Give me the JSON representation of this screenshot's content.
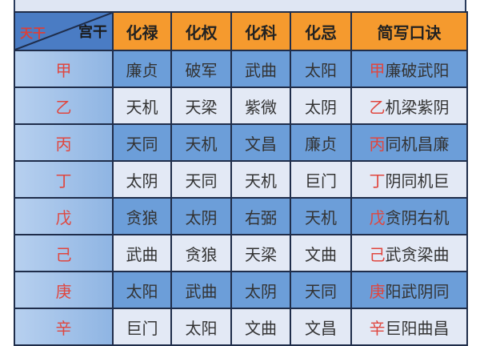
{
  "header": {
    "corner_stem": "天干",
    "corner_palace": "宫干",
    "columns": [
      "化禄",
      "化权",
      "化科",
      "化忌",
      "简写口诀"
    ]
  },
  "rows": [
    {
      "stem": "甲",
      "cells": [
        "廉贞",
        "破军",
        "武曲",
        "太阳"
      ],
      "mnemonic_rest": "廉破武阳"
    },
    {
      "stem": "乙",
      "cells": [
        "天机",
        "天梁",
        "紫微",
        "太阴"
      ],
      "mnemonic_rest": "机梁紫阴"
    },
    {
      "stem": "丙",
      "cells": [
        "天同",
        "天机",
        "文昌",
        "廉贞"
      ],
      "mnemonic_rest": "同机昌廉"
    },
    {
      "stem": "丁",
      "cells": [
        "太阴",
        "天同",
        "天机",
        "巨门"
      ],
      "mnemonic_rest": "阴同机巨"
    },
    {
      "stem": "戊",
      "cells": [
        "贪狼",
        "太阴",
        "右弼",
        "天机"
      ],
      "mnemonic_rest": "贪阴右机"
    },
    {
      "stem": "己",
      "cells": [
        "武曲",
        "贪狼",
        "天梁",
        "文曲"
      ],
      "mnemonic_rest": "武贪梁曲"
    },
    {
      "stem": "庚",
      "cells": [
        "太阳",
        "武曲",
        "太阴",
        "天同"
      ],
      "mnemonic_rest": "阳武阴同"
    },
    {
      "stem": "辛",
      "cells": [
        "巨门",
        "太阳",
        "文曲",
        "文昌"
      ],
      "mnemonic_rest": "巨阳曲昌"
    }
  ],
  "colors": {
    "header": "#f59a2e",
    "row_dark": "#6c9ed9",
    "row_light": "#e3e9f5",
    "stem_text": "#e0463e",
    "border": "#1f2d4a"
  }
}
